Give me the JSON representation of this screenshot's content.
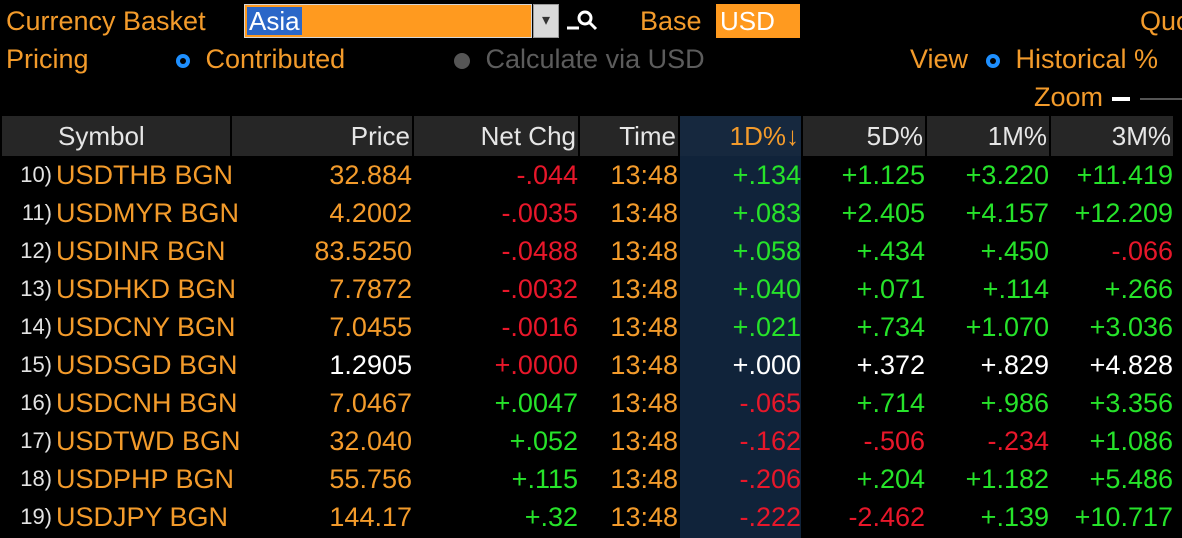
{
  "toolbar": {
    "basket_label": "Currency Basket",
    "basket_value": "Asia",
    "base_label": "Base",
    "base_value": "USD",
    "quote_label": "Quo",
    "pricing_label": "Pricing",
    "pricing_option_1": "Contributed",
    "pricing_option_2": "Calculate via USD",
    "view_label": "View",
    "view_option": "Historical %",
    "zoom_label": "Zoom"
  },
  "table": {
    "headers": [
      "Symbol",
      "Price",
      "Net Chg",
      "Time",
      "1D%↓",
      "5D%",
      "1M%",
      "3M%"
    ],
    "rows": [
      {
        "idx": "10)",
        "symbol": "USDTHB BGN",
        "price": "32.884",
        "chg": "-.044",
        "time": "13:48",
        "d1": "+.134",
        "d5": "+1.125",
        "m1": "+3.220",
        "m3": "+11.419"
      },
      {
        "idx": "11)",
        "symbol": "USDMYR BGN",
        "price": "4.2002",
        "chg": "-.0035",
        "time": "13:48",
        "d1": "+.083",
        "d5": "+2.405",
        "m1": "+4.157",
        "m3": "+12.209"
      },
      {
        "idx": "12)",
        "symbol": "USDINR BGN",
        "price": "83.5250",
        "chg": "-.0488",
        "time": "13:48",
        "d1": "+.058",
        "d5": "+.434",
        "m1": "+.450",
        "m3": "-.066"
      },
      {
        "idx": "13)",
        "symbol": "USDHKD BGN",
        "price": "7.7872",
        "chg": "-.0032",
        "time": "13:48",
        "d1": "+.040",
        "d5": "+.071",
        "m1": "+.114",
        "m3": "+.266"
      },
      {
        "idx": "14)",
        "symbol": "USDCNY BGN",
        "price": "7.0455",
        "chg": "-.0016",
        "time": "13:48",
        "d1": "+.021",
        "d5": "+.734",
        "m1": "+1.070",
        "m3": "+3.036"
      },
      {
        "idx": "15)",
        "symbol": "USDSGD BGN",
        "price": "1.2905",
        "chg": "+.0000",
        "time": "13:48",
        "d1": "+.000",
        "d5": "+.372",
        "m1": "+.829",
        "m3": "+4.828"
      },
      {
        "idx": "16)",
        "symbol": "USDCNH BGN",
        "price": "7.0467",
        "chg": "+.0047",
        "time": "13:48",
        "d1": "-.065",
        "d5": "+.714",
        "m1": "+.986",
        "m3": "+3.356"
      },
      {
        "idx": "17)",
        "symbol": "USDTWD BGN",
        "price": "32.040",
        "chg": "+.052",
        "time": "13:48",
        "d1": "-.162",
        "d5": "-.506",
        "m1": "-.234",
        "m3": "+1.086"
      },
      {
        "idx": "18)",
        "symbol": "USDPHP BGN",
        "price": "55.756",
        "chg": "+.115",
        "time": "13:48",
        "d1": "-.206",
        "d5": "+.204",
        "m1": "+1.182",
        "m3": "+5.486"
      },
      {
        "idx": "19)",
        "symbol": "USDJPY BGN",
        "price": "144.17",
        "chg": "+.32",
        "time": "13:48",
        "d1": "-.222",
        "d5": "-2.462",
        "m1": "+.139",
        "m3": "+10.717"
      }
    ]
  },
  "colors": {
    "orange": "#f39b2b",
    "positive": "#26e32a",
    "negative": "#e8172a",
    "neutral": "#ffffff",
    "header_bg": "#262626",
    "selected_blue": "#2b67c8"
  }
}
